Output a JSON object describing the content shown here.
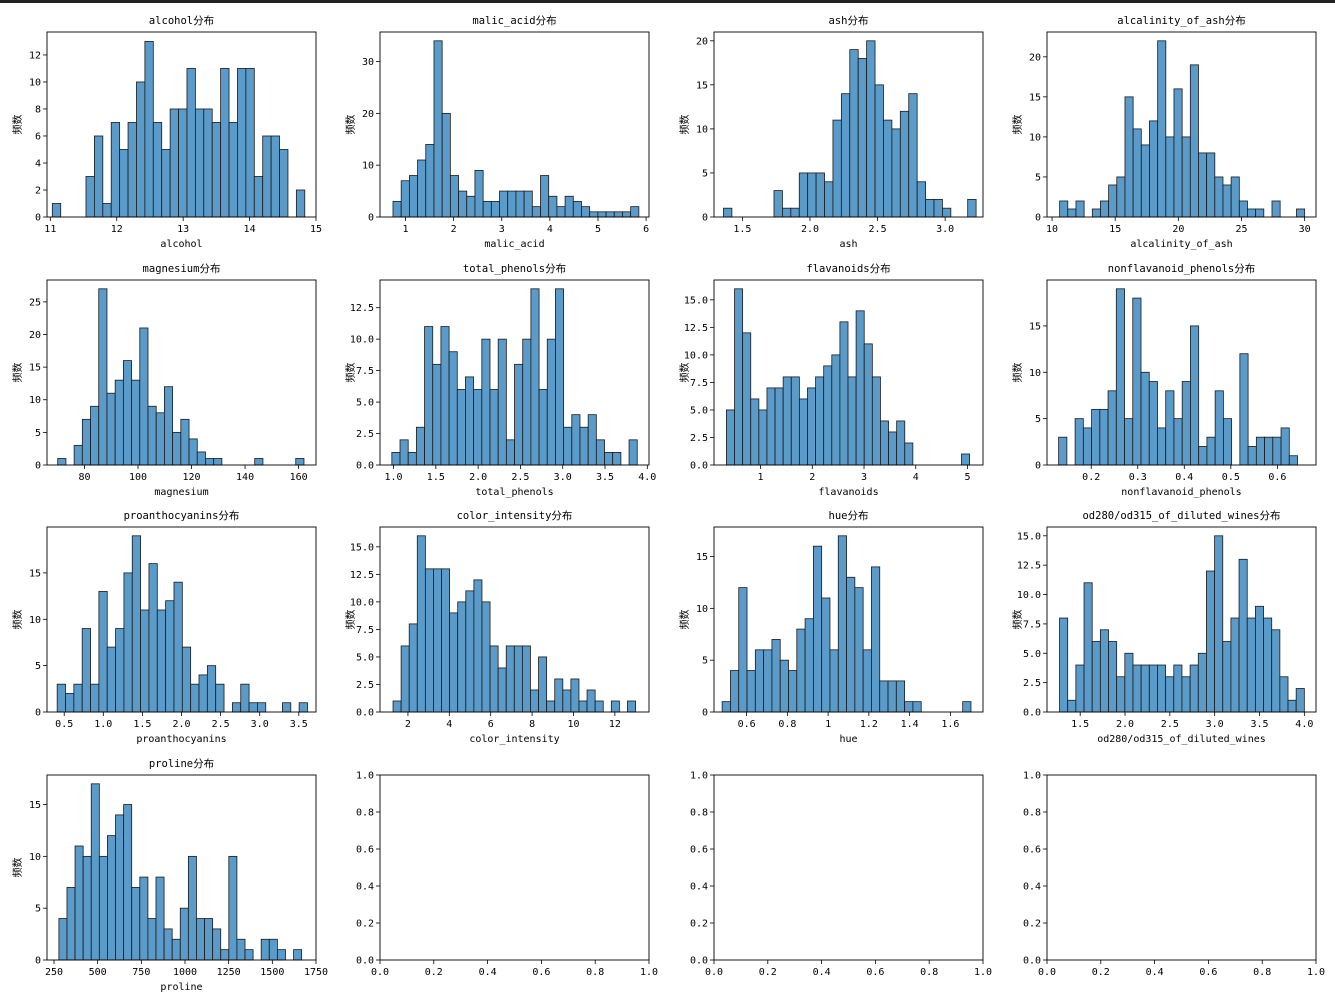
{
  "style": {
    "bar_fill": "#5b9bc9",
    "bar_edge": "#1a1a1a",
    "background": "#ffffff"
  },
  "ylabel": "频数",
  "chart_data": [
    {
      "type": "bar",
      "title": "alcohol分布",
      "xlabel": "alcohol",
      "ylabel": "频数",
      "xlim": [
        10.95,
        15.0
      ],
      "ylim": [
        0,
        13.7
      ],
      "xticks": [
        11,
        12,
        13,
        14,
        15
      ],
      "yticks": [
        0,
        2,
        4,
        6,
        8,
        10,
        12
      ],
      "bin_start": 11.03,
      "bin_width": 0.1267,
      "values": [
        1,
        0,
        0,
        0,
        3,
        6,
        1,
        7,
        5,
        7,
        10,
        13,
        7,
        5,
        8,
        8,
        11,
        8,
        8,
        7,
        11,
        7,
        11,
        11,
        3,
        6,
        6,
        5,
        0,
        2
      ]
    },
    {
      "type": "bar",
      "title": "malic_acid分布",
      "xlabel": "malic_acid",
      "ylabel": "频数",
      "xlim": [
        0.47,
        6.06
      ],
      "ylim": [
        0,
        35.7
      ],
      "xticks": [
        1,
        2,
        3,
        4,
        5,
        6
      ],
      "yticks": [
        0,
        10,
        20,
        30
      ],
      "bin_start": 0.74,
      "bin_width": 0.1703,
      "values": [
        3,
        7,
        8,
        11,
        14,
        34,
        20,
        8,
        5,
        4,
        9,
        3,
        3,
        5,
        5,
        5,
        5,
        2,
        8,
        4,
        2,
        4,
        3,
        2,
        1,
        1,
        1,
        1,
        1,
        2
      ]
    },
    {
      "type": "bar",
      "title": "ash分布",
      "xlabel": "ash",
      "ylabel": "频数",
      "xlim": [
        1.29,
        3.28
      ],
      "ylim": [
        0,
        21
      ],
      "xticks": [
        1.5,
        2.0,
        2.5,
        3.0
      ],
      "yticks": [
        0,
        5,
        10,
        15,
        20
      ],
      "xticklabels": [
        "1.5",
        "2.0",
        "2.5",
        "3.0"
      ],
      "bin_start": 1.36,
      "bin_width": 0.0623,
      "values": [
        1,
        0,
        0,
        0,
        0,
        0,
        3,
        1,
        1,
        5,
        5,
        5,
        4,
        11,
        14,
        19,
        18,
        20,
        15,
        11,
        10,
        12,
        14,
        4,
        2,
        2,
        1,
        0,
        0,
        2
      ]
    },
    {
      "type": "bar",
      "title": "alcalinity_of_ash分布",
      "xlabel": "alcalinity_of_ash",
      "ylabel": "频数",
      "xlim": [
        9.6,
        30.9
      ],
      "ylim": [
        0,
        23.1
      ],
      "xticks": [
        10,
        15,
        20,
        25,
        30
      ],
      "yticks": [
        0,
        5,
        10,
        15,
        20
      ],
      "bin_start": 10.6,
      "bin_width": 0.6467,
      "values": [
        2,
        1,
        2,
        0,
        1,
        2,
        4,
        5,
        15,
        11,
        9,
        12,
        22,
        10,
        16,
        10,
        19,
        8,
        8,
        5,
        4,
        5,
        2,
        1,
        1,
        0,
        2,
        0,
        0,
        1
      ]
    },
    {
      "type": "bar",
      "title": "magnesium分布",
      "xlabel": "magnesium",
      "ylabel": "频数",
      "xlim": [
        66.0,
        166.5
      ],
      "ylim": [
        0,
        28.35
      ],
      "xticks": [
        80,
        100,
        120,
        140,
        160
      ],
      "yticks": [
        0,
        5,
        10,
        15,
        20,
        25
      ],
      "bin_start": 70,
      "bin_width": 3.0667,
      "values": [
        1,
        0,
        3,
        7,
        9,
        27,
        11,
        13,
        16,
        13,
        21,
        9,
        8,
        12,
        5,
        7,
        4,
        2,
        1,
        1,
        0,
        0,
        0,
        0,
        1,
        0,
        0,
        0,
        0,
        1
      ]
    },
    {
      "type": "bar",
      "title": "total_phenols分布",
      "xlabel": "total_phenols",
      "ylabel": "频数",
      "xlim": [
        0.84,
        4.02
      ],
      "ylim": [
        0,
        14.7
      ],
      "xticks": [
        1.0,
        1.5,
        2.0,
        2.5,
        3.0,
        3.5,
        4.0
      ],
      "yticks": [
        0,
        2.5,
        5.0,
        7.5,
        10.0,
        12.5
      ],
      "xticklabels": [
        "1.0",
        "1.5",
        "2.0",
        "2.5",
        "3.0",
        "3.5",
        "4.0"
      ],
      "yticklabels": [
        "0.0",
        "2.5",
        "5.0",
        "7.5",
        "10.0",
        "12.5"
      ],
      "bin_start": 0.98,
      "bin_width": 0.0967,
      "values": [
        1,
        2,
        1,
        3,
        11,
        8,
        11,
        9,
        6,
        7,
        6,
        10,
        6,
        10,
        2,
        8,
        10,
        14,
        6,
        10,
        14,
        3,
        4,
        3,
        4,
        2,
        1,
        1,
        0,
        2
      ]
    },
    {
      "type": "bar",
      "title": "flavanoids分布",
      "xlabel": "flavanoids",
      "ylabel": "频数",
      "xlim": [
        0.1,
        5.3
      ],
      "ylim": [
        0,
        16.8
      ],
      "xticks": [
        1,
        2,
        3,
        4,
        5
      ],
      "yticks": [
        0,
        2.5,
        5.0,
        7.5,
        10.0,
        12.5,
        15.0
      ],
      "yticklabels": [
        "0.0",
        "2.5",
        "5.0",
        "7.5",
        "10.0",
        "12.5",
        "15.0"
      ],
      "bin_start": 0.34,
      "bin_width": 0.1567,
      "values": [
        5,
        16,
        12,
        6,
        5,
        7,
        7,
        8,
        8,
        6,
        7,
        8,
        9,
        10,
        13,
        8,
        14,
        11,
        8,
        4,
        3,
        4,
        2,
        0,
        0,
        0,
        0,
        0,
        0,
        1
      ]
    },
    {
      "type": "bar",
      "title": "nonflavanoid_phenols分布",
      "xlabel": "nonflavanoid_phenols",
      "ylabel": "频数",
      "xlim": [
        0.105,
        0.683
      ],
      "ylim": [
        0,
        19.95
      ],
      "xticks": [
        0.2,
        0.3,
        0.4,
        0.5,
        0.6
      ],
      "yticks": [
        0,
        5,
        10,
        15
      ],
      "bin_start": 0.13,
      "bin_width": 0.0177,
      "values": [
        3,
        0,
        5,
        4,
        6,
        6,
        8,
        19,
        5,
        18,
        10,
        9,
        4,
        8,
        5,
        9,
        15,
        2,
        3,
        8,
        5,
        0,
        12,
        2,
        3,
        3,
        3,
        4,
        1,
        0
      ]
    },
    {
      "type": "bar",
      "title": "proanthocyanins分布",
      "xlabel": "proanthocyanins",
      "ylabel": "频数",
      "xlim": [
        0.28,
        3.72
      ],
      "ylim": [
        0,
        19.95
      ],
      "xticks": [
        0.5,
        1.0,
        1.5,
        2.0,
        2.5,
        3.0,
        3.5
      ],
      "yticks": [
        0,
        5,
        10,
        15
      ],
      "xticklabels": [
        "0.5",
        "1.0",
        "1.5",
        "2.0",
        "2.5",
        "3.0",
        "3.5"
      ],
      "bin_start": 0.41,
      "bin_width": 0.1067,
      "values": [
        3,
        2,
        3,
        9,
        3,
        13,
        7,
        9,
        15,
        19,
        11,
        16,
        11,
        12,
        14,
        7,
        3,
        4,
        5,
        3,
        0,
        1,
        3,
        1,
        1,
        0,
        0,
        1,
        0,
        1
      ]
    },
    {
      "type": "bar",
      "title": "color_intensity分布",
      "xlabel": "color_intensity",
      "ylabel": "频数",
      "xlim": [
        0.65,
        13.65
      ],
      "ylim": [
        0,
        16.8
      ],
      "xticks": [
        2,
        4,
        6,
        8,
        10,
        12
      ],
      "yticks": [
        0,
        2.5,
        5.0,
        7.5,
        10.0,
        12.5,
        15.0
      ],
      "yticklabels": [
        "0.0",
        "2.5",
        "5.0",
        "7.5",
        "10.0",
        "12.5",
        "15.0"
      ],
      "bin_start": 1.28,
      "bin_width": 0.3907,
      "values": [
        1,
        6,
        8,
        16,
        13,
        13,
        13,
        9,
        10,
        11,
        12,
        10,
        6,
        4,
        6,
        6,
        6,
        2,
        5,
        1,
        3,
        2,
        3,
        1,
        2,
        1,
        0,
        1,
        0,
        1
      ]
    },
    {
      "type": "bar",
      "title": "hue分布",
      "xlabel": "hue",
      "ylabel": "频数",
      "xlim": [
        0.44,
        1.76
      ],
      "ylim": [
        0,
        17.85
      ],
      "xticks": [
        0.6,
        0.8,
        1.0,
        1.2,
        1.4,
        1.6
      ],
      "yticks": [
        0,
        5,
        10,
        15
      ],
      "bin_start": 0.48,
      "bin_width": 0.0407,
      "values": [
        1,
        4,
        12,
        4,
        6,
        6,
        7,
        5,
        4,
        8,
        9,
        16,
        11,
        6,
        17,
        13,
        12,
        6,
        14,
        3,
        3,
        3,
        1,
        1,
        0,
        0,
        0,
        0,
        0,
        1
      ]
    },
    {
      "type": "bar",
      "title": "od280/od315_of_diluted_wines分布",
      "xlabel": "od280/od315_of_diluted_wines",
      "ylabel": "频数",
      "xlim": [
        1.13,
        4.13
      ],
      "ylim": [
        0,
        15.75
      ],
      "xticks": [
        1.5,
        2.0,
        2.5,
        3.0,
        3.5,
        4.0
      ],
      "yticks": [
        0,
        2.5,
        5.0,
        7.5,
        10.0,
        12.5,
        15.0
      ],
      "xticklabels": [
        "1.5",
        "2.0",
        "2.5",
        "3.0",
        "3.5",
        "4.0"
      ],
      "yticklabels": [
        "0.0",
        "2.5",
        "5.0",
        "7.5",
        "10.0",
        "12.5",
        "15.0"
      ],
      "bin_start": 1.27,
      "bin_width": 0.091,
      "values": [
        8,
        1,
        4,
        11,
        6,
        7,
        6,
        3,
        5,
        4,
        4,
        4,
        4,
        3,
        4,
        3,
        4,
        5,
        12,
        15,
        6,
        8,
        13,
        8,
        9,
        8,
        7,
        3,
        1,
        2
      ]
    },
    {
      "type": "bar",
      "title": "proline分布",
      "xlabel": "proline",
      "ylabel": "频数",
      "xlim": [
        210,
        1750
      ],
      "ylim": [
        0,
        17.85
      ],
      "xticks": [
        250,
        500,
        750,
        1000,
        1250,
        1500,
        1750
      ],
      "yticks": [
        0,
        5,
        10,
        15
      ],
      "bin_start": 278,
      "bin_width": 46.33,
      "values": [
        4,
        7,
        11,
        10,
        17,
        10,
        12,
        14,
        15,
        7,
        8,
        4,
        8,
        3,
        2,
        5,
        10,
        4,
        4,
        3,
        1,
        10,
        2,
        1,
        0,
        2,
        2,
        1,
        0,
        1
      ]
    },
    {
      "type": "bar",
      "title": "",
      "xlabel": "",
      "ylabel": "",
      "xlim": [
        0,
        1
      ],
      "ylim": [
        0,
        1
      ],
      "xticks": [
        0,
        0.2,
        0.4,
        0.6,
        0.8,
        1.0
      ],
      "yticks": [
        0,
        0.2,
        0.4,
        0.6,
        0.8,
        1.0
      ],
      "xticklabels": [
        "0.0",
        "0.2",
        "0.4",
        "0.6",
        "0.8",
        "1.0"
      ],
      "yticklabels": [
        "0.0",
        "0.2",
        "0.4",
        "0.6",
        "0.8",
        "1.0"
      ],
      "values": []
    },
    {
      "type": "bar",
      "title": "",
      "xlabel": "",
      "ylabel": "",
      "xlim": [
        0,
        1
      ],
      "ylim": [
        0,
        1
      ],
      "xticks": [
        0,
        0.2,
        0.4,
        0.6,
        0.8,
        1.0
      ],
      "yticks": [
        0,
        0.2,
        0.4,
        0.6,
        0.8,
        1.0
      ],
      "xticklabels": [
        "0.0",
        "0.2",
        "0.4",
        "0.6",
        "0.8",
        "1.0"
      ],
      "yticklabels": [
        "0.0",
        "0.2",
        "0.4",
        "0.6",
        "0.8",
        "1.0"
      ],
      "values": []
    },
    {
      "type": "bar",
      "title": "",
      "xlabel": "",
      "ylabel": "",
      "xlim": [
        0,
        1
      ],
      "ylim": [
        0,
        1
      ],
      "xticks": [
        0,
        0.2,
        0.4,
        0.6,
        0.8,
        1.0
      ],
      "yticks": [
        0,
        0.2,
        0.4,
        0.6,
        0.8,
        1.0
      ],
      "xticklabels": [
        "0.0",
        "0.2",
        "0.4",
        "0.6",
        "0.8",
        "1.0"
      ],
      "yticklabels": [
        "0.0",
        "0.2",
        "0.4",
        "0.6",
        "0.8",
        "1.0"
      ],
      "values": []
    }
  ]
}
